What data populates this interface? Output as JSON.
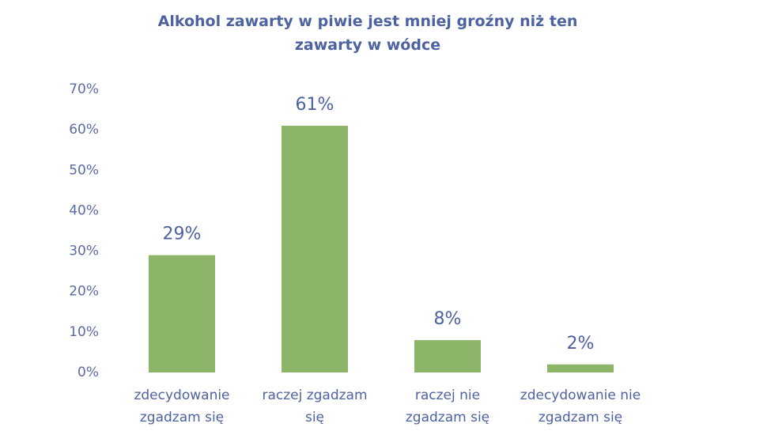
{
  "chart_data": {
    "type": "bar",
    "title": "Alkohol zawarty w piwie jest mniej groźny niż ten zawarty w wódce",
    "categories": [
      "zdecydowanie zgadzam się",
      "raczej zgadzam się",
      "raczej nie zgadzam się",
      "zdecydowanie nie zgadzam się"
    ],
    "values": [
      29,
      61,
      8,
      2
    ],
    "value_labels": [
      "29%",
      "61%",
      "8%",
      "2%"
    ],
    "color": "#8db56a",
    "ylim": [
      0,
      70
    ],
    "yticks": [
      {
        "value": 0,
        "label": "0%"
      },
      {
        "value": 10,
        "label": "10%"
      },
      {
        "value": 20,
        "label": "20%"
      },
      {
        "value": 30,
        "label": "30%"
      },
      {
        "value": 40,
        "label": "40%"
      },
      {
        "value": 50,
        "label": "50%"
      },
      {
        "value": 60,
        "label": "60%"
      },
      {
        "value": 70,
        "label": "70%"
      }
    ],
    "grid": false
  }
}
